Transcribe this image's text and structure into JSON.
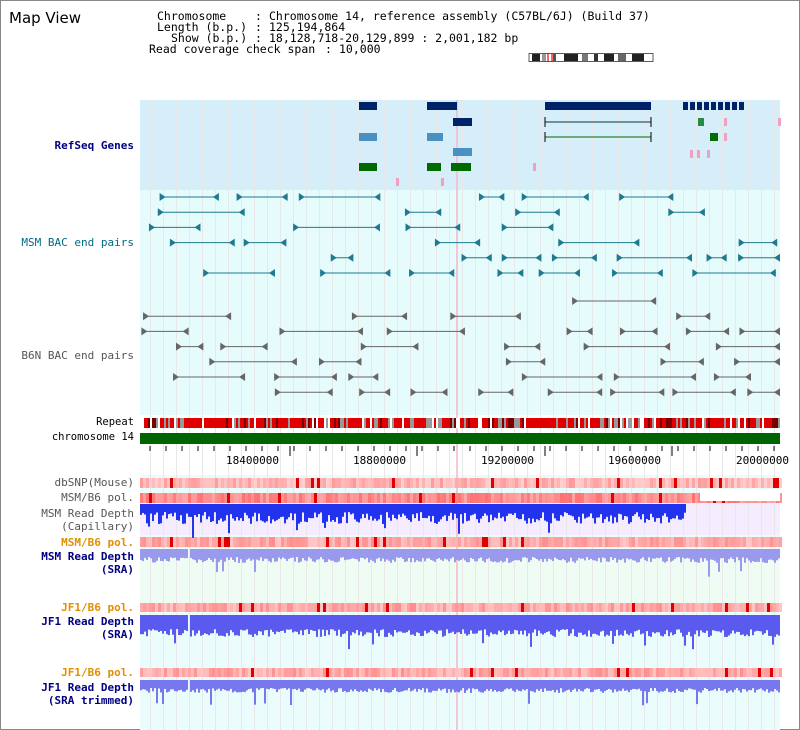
{
  "title": "Map View",
  "info": {
    "chromosome_label": "Chromosome",
    "chromosome_value": "Chromosome 14, reference assembly (C57BL/6J) (Build 37)",
    "length_label": "Length (b.p.)",
    "length_value": "125,194,864",
    "show_label": "Show (b.p.)",
    "show_value": "18,128,718-20,129,899 : 2,001,182 bp",
    "coverage_label": "Read coverage check span",
    "coverage_value": "10,000"
  },
  "tracks": {
    "refseq": "RefSeq Genes",
    "msm_bac": "MSM BAC end pairs",
    "b6n_bac": "B6N BAC end pairs",
    "repeat": "Repeat",
    "chromosome": "chromosome 14",
    "dbsnp": "dbSNP(Mouse)",
    "msm_b6_pol_1": "MSM/B6 pol.",
    "msm_read_depth_cap_1": "MSM Read Depth",
    "msm_read_depth_cap_2": "(Capillary)",
    "msm_b6_pol_2": "MSM/B6 pol.",
    "msm_read_depth_sra_1": "MSM Read Depth",
    "msm_read_depth_sra_2": "(SRA)",
    "jf1_b6_pol_1": "JF1/B6 pol.",
    "jf1_read_depth_sra_1": "JF1 Read Depth",
    "jf1_read_depth_sra_2": "(SRA)",
    "jf1_b6_pol_2": "JF1/B6 pol.",
    "jf1_read_depth_trim_1": "JF1 Read Depth",
    "jf1_read_depth_trim_2": "(SRA trimmed)"
  },
  "axis": {
    "ticks": [
      "18400000",
      "18800000",
      "19200000",
      "19600000",
      "20000000"
    ],
    "tick_values": [
      18400000,
      18800000,
      19200000,
      19600000,
      20000000
    ],
    "range": [
      18128718,
      20129899
    ]
  },
  "colors": {
    "navy": "#000080",
    "teal": "#006a85",
    "orange": "#e09000",
    "refseq_bg": "#d6eefa",
    "bac_bg": "#e6fbfb",
    "chromosome": "#006400",
    "repeat_red": "#e00000",
    "depth_blue": "#3344ee"
  },
  "ideogram_icon": "chromosome-ideogram-icon"
}
